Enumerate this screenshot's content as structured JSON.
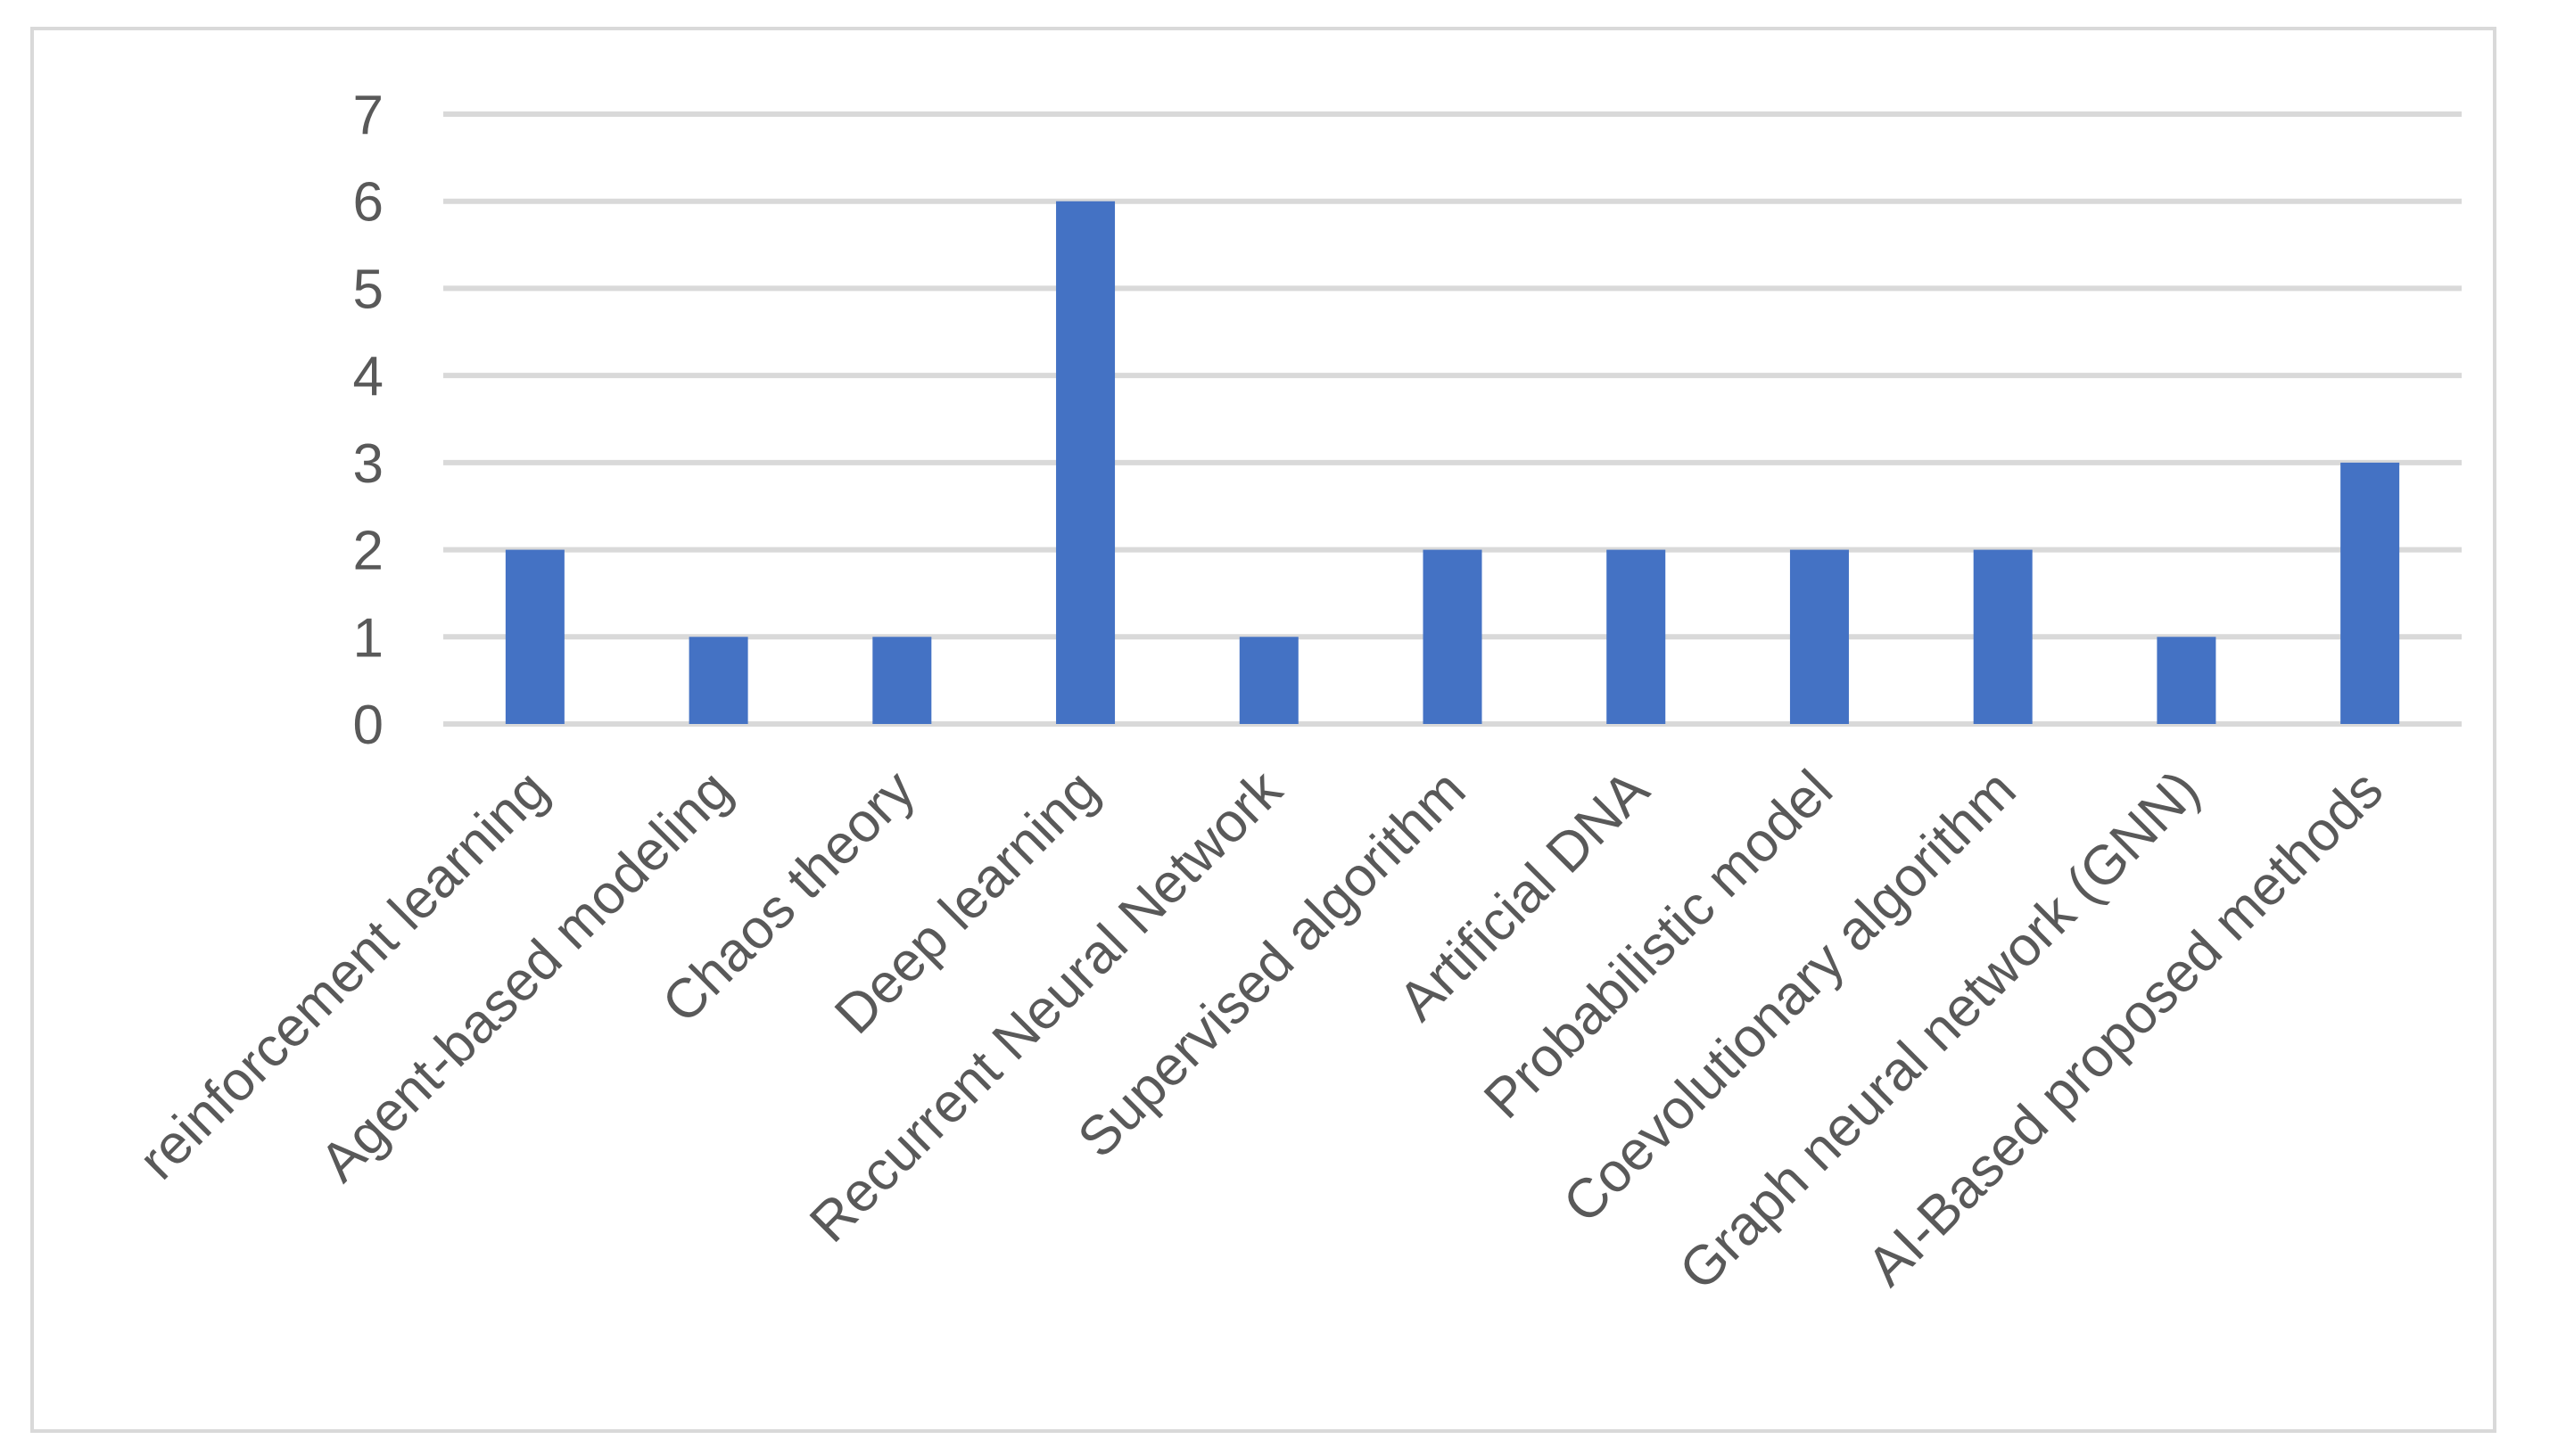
{
  "chart_data": {
    "type": "bar",
    "categories": [
      "reinforcement learning",
      "Agent-based modeling",
      "Chaos theory",
      "Deep learning",
      "Recurrent Neural Network",
      "Supervised algorithm",
      "Artificial DNA",
      "Probabilistic model",
      "Coevolutionary algorithm",
      "Graph neural network (GNN)",
      "AI-Based  proposed methods"
    ],
    "values": [
      2,
      1,
      1,
      6,
      1,
      2,
      2,
      2,
      2,
      1,
      3
    ],
    "title": "",
    "xlabel": "",
    "ylabel": "",
    "ylim": [
      0,
      7
    ],
    "yticks": [
      "0",
      "1",
      "2",
      "3",
      "4",
      "5",
      "6",
      "7"
    ],
    "grid": true,
    "legend": "none",
    "bar_color": "#4472c4",
    "grid_color": "#d9d9d9",
    "text_color": "#595959"
  }
}
